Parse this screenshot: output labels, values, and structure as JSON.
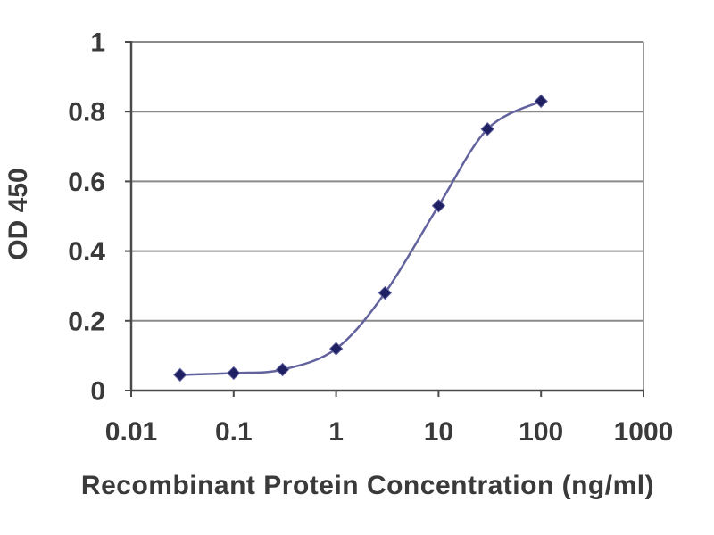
{
  "chart_data": {
    "type": "line",
    "title": "",
    "xlabel": "Recombinant Protein Concentration (ng/ml)",
    "ylabel": "OD 450",
    "x_scale": "log",
    "xlim": [
      0.01,
      1000
    ],
    "ylim": [
      0,
      1
    ],
    "xticks": [
      0.01,
      0.1,
      1,
      10,
      100,
      1000
    ],
    "xtick_labels": [
      "0.01",
      "0.1",
      "1",
      "10",
      "100",
      "1000"
    ],
    "yticks": [
      0,
      0.2,
      0.4,
      0.6,
      0.8,
      1
    ],
    "ytick_labels": [
      "0",
      "0.2",
      "0.4",
      "0.6",
      "0.8",
      "1"
    ],
    "grid": "horizontal",
    "legend": "none",
    "marker": "diamond",
    "x": [
      0.03,
      0.1,
      0.3,
      1,
      3,
      10,
      30,
      100
    ],
    "series": [
      {
        "name": "OD 450",
        "values": [
          0.045,
          0.05,
          0.06,
          0.12,
          0.28,
          0.53,
          0.75,
          0.83
        ]
      }
    ],
    "colors": {
      "line": "#62629e",
      "marker": "#1f1f63",
      "grid": "#8a8a8a",
      "axis": "#4a4a4a",
      "frame": "#9a9a9a",
      "text": "#3a3a3a",
      "background": "#ffffff"
    }
  }
}
